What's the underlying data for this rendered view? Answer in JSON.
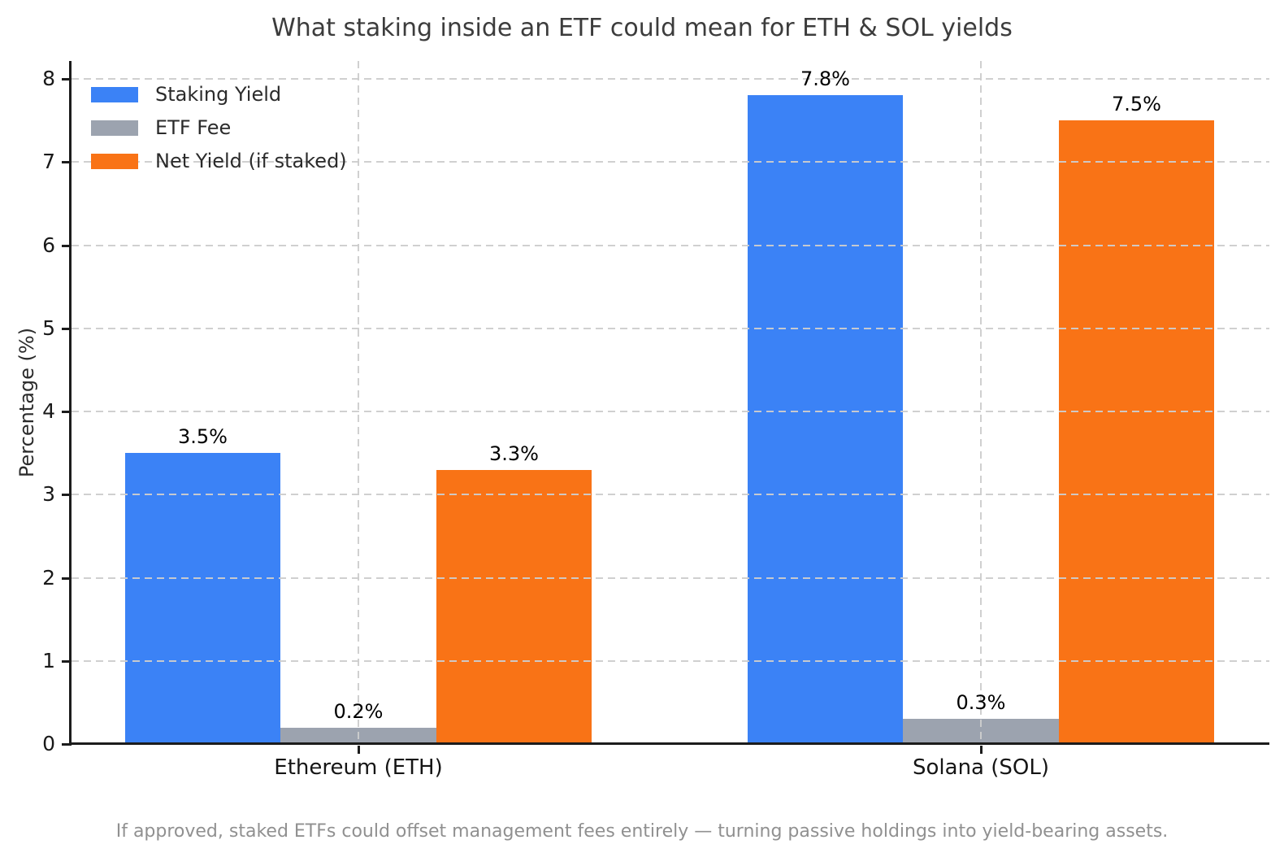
{
  "chart_data": {
    "type": "bar",
    "title": "What staking inside an ETF could mean for ETH & SOL yields",
    "categories": [
      "Ethereum (ETH)",
      "Solana (SOL)"
    ],
    "series": [
      {
        "name": "Staking Yield",
        "color": "#3b82f6",
        "values": [
          3.5,
          7.8
        ],
        "labels": [
          "3.5%",
          "7.8%"
        ]
      },
      {
        "name": "ETF Fee",
        "color": "#9ca3af",
        "values": [
          0.2,
          0.3
        ],
        "labels": [
          "0.2%",
          "0.3%"
        ]
      },
      {
        "name": "Net Yield (if staked)",
        "color": "#f97316",
        "values": [
          3.3,
          7.5
        ],
        "labels": [
          "3.3%",
          "7.5%"
        ]
      }
    ],
    "xlabel": "",
    "ylabel": "Percentage (%)",
    "yticks": [
      0,
      1,
      2,
      3,
      4,
      5,
      6,
      7,
      8
    ],
    "ylim": [
      0,
      8.2
    ],
    "grid": "dashed, horizontal at each integer and vertical at category centers, drawn over bars",
    "legend_position": "upper-left",
    "bar_label_format": "0.0%",
    "caption": "If approved, staked ETFs could offset management fees entirely — turning passive holdings into yield-bearing assets."
  }
}
